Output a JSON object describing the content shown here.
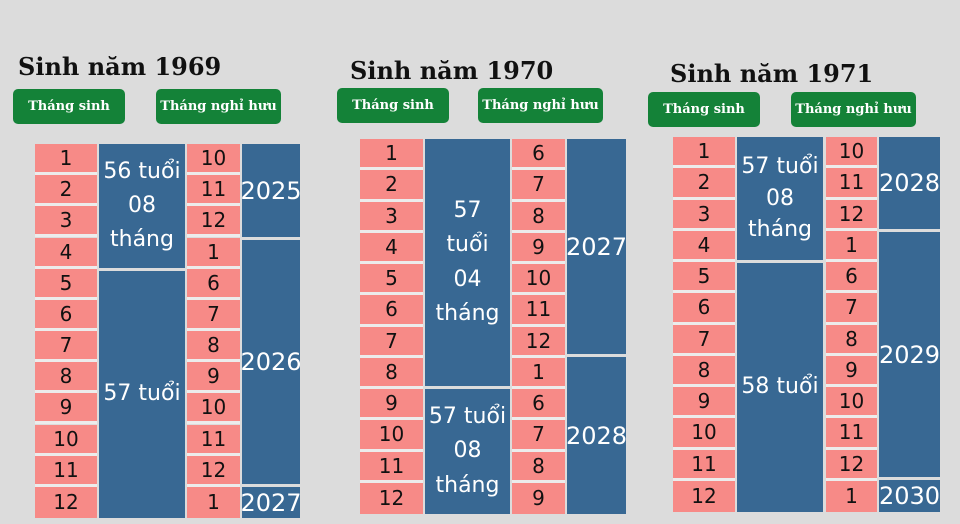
{
  "panels": [
    {
      "title": "Sinh năm 1969",
      "label_birth": "Tháng sinh",
      "label_retire": "Tháng nghỉ hưu",
      "birth_months": [
        "1",
        "2",
        "3",
        "4",
        "5",
        "6",
        "7",
        "8",
        "9",
        "10",
        "11",
        "12"
      ],
      "retire_months": [
        "10",
        "11",
        "12",
        "1",
        "6",
        "7",
        "8",
        "9",
        "10",
        "11",
        "12",
        "1"
      ],
      "ages": [
        "56 tuổi\n08\ntháng",
        "57 tuổi"
      ],
      "years": [
        "2025",
        "2026",
        "2027"
      ]
    },
    {
      "title": "Sinh năm 1970",
      "label_birth": "Tháng sinh",
      "label_retire": "Tháng nghỉ hưu",
      "birth_months": [
        "1",
        "2",
        "3",
        "4",
        "5",
        "6",
        "7",
        "8",
        "9",
        "10",
        "11",
        "12"
      ],
      "retire_months": [
        "6",
        "7",
        "8",
        "9",
        "10",
        "11",
        "12",
        "1",
        "6",
        "7",
        "8",
        "9"
      ],
      "ages": [
        "57\ntuổi\n04\ntháng",
        "57 tuổi\n08\ntháng"
      ],
      "years": [
        "2027",
        "2028"
      ]
    },
    {
      "title": "Sinh năm 1971",
      "label_birth": "Tháng sinh",
      "label_retire": "Tháng nghỉ hưu",
      "birth_months": [
        "1",
        "2",
        "3",
        "4",
        "5",
        "6",
        "7",
        "8",
        "9",
        "10",
        "11",
        "12"
      ],
      "retire_months": [
        "10",
        "11",
        "12",
        "1",
        "6",
        "7",
        "8",
        "9",
        "10",
        "11",
        "12",
        "1"
      ],
      "ages": [
        "57 tuổi\n08 tháng",
        "58 tuổi"
      ],
      "years": [
        "2028",
        "2029",
        "2030"
      ]
    }
  ],
  "colors": {
    "background": "#dcdcdc",
    "pill": "#148238",
    "month_cell": "#f78a87",
    "age_block": "#386893"
  }
}
